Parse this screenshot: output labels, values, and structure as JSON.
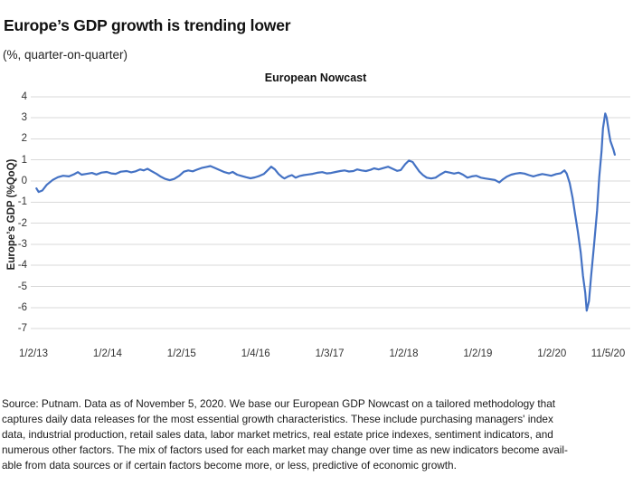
{
  "header": {
    "title": "Europe’s GDP growth is trending lower",
    "subtitle": "(%, quarter-on-quarter)"
  },
  "chart_data": {
    "type": "line",
    "title": "European Nowcast",
    "xlabel": "",
    "ylabel": "Europe’s GDP (%QoQ)",
    "ylim": [
      -7,
      4
    ],
    "grid": "horizontal-only",
    "legend": "none",
    "line_color": "#4472c4",
    "gridline_color": "#d9d9d9",
    "yticks": [
      4,
      3,
      2,
      1,
      0,
      -1,
      -2,
      -3,
      -4,
      -5,
      -6,
      -7
    ],
    "xticks": [
      {
        "label": "1/2/13",
        "t": 2013.0
      },
      {
        "label": "1/2/14",
        "t": 2014.0
      },
      {
        "label": "1/2/15",
        "t": 2015.0
      },
      {
        "label": "1/4/16",
        "t": 2016.0
      },
      {
        "label": "1/3/17",
        "t": 2017.0
      },
      {
        "label": "1/2/18",
        "t": 2018.0
      },
      {
        "label": "1/2/19",
        "t": 2019.0
      },
      {
        "label": "1/2/20",
        "t": 2020.0
      },
      {
        "label": "11/5/20",
        "t": 2020.76
      }
    ],
    "series": [
      {
        "name": "European Nowcast",
        "points": [
          [
            2013.04,
            -0.35
          ],
          [
            2013.07,
            -0.52
          ],
          [
            2013.12,
            -0.45
          ],
          [
            2013.18,
            -0.18
          ],
          [
            2013.26,
            0.05
          ],
          [
            2013.33,
            0.18
          ],
          [
            2013.4,
            0.25
          ],
          [
            2013.48,
            0.22
          ],
          [
            2013.55,
            0.32
          ],
          [
            2013.6,
            0.42
          ],
          [
            2013.65,
            0.3
          ],
          [
            2013.72,
            0.34
          ],
          [
            2013.79,
            0.38
          ],
          [
            2013.85,
            0.31
          ],
          [
            2013.92,
            0.4
          ],
          [
            2013.99,
            0.43
          ],
          [
            2014.05,
            0.36
          ],
          [
            2014.11,
            0.34
          ],
          [
            2014.18,
            0.44
          ],
          [
            2014.26,
            0.47
          ],
          [
            2014.32,
            0.41
          ],
          [
            2014.38,
            0.46
          ],
          [
            2014.44,
            0.55
          ],
          [
            2014.49,
            0.5
          ],
          [
            2014.54,
            0.58
          ],
          [
            2014.6,
            0.46
          ],
          [
            2014.66,
            0.34
          ],
          [
            2014.72,
            0.2
          ],
          [
            2014.78,
            0.1
          ],
          [
            2014.84,
            0.04
          ],
          [
            2014.9,
            0.1
          ],
          [
            2014.97,
            0.25
          ],
          [
            2015.03,
            0.44
          ],
          [
            2015.09,
            0.5
          ],
          [
            2015.15,
            0.46
          ],
          [
            2015.21,
            0.54
          ],
          [
            2015.27,
            0.62
          ],
          [
            2015.33,
            0.66
          ],
          [
            2015.39,
            0.71
          ],
          [
            2015.45,
            0.62
          ],
          [
            2015.52,
            0.51
          ],
          [
            2015.58,
            0.42
          ],
          [
            2015.64,
            0.36
          ],
          [
            2015.69,
            0.43
          ],
          [
            2015.75,
            0.3
          ],
          [
            2015.81,
            0.24
          ],
          [
            2015.87,
            0.18
          ],
          [
            2015.93,
            0.13
          ],
          [
            2015.99,
            0.17
          ],
          [
            2016.05,
            0.24
          ],
          [
            2016.11,
            0.33
          ],
          [
            2016.16,
            0.5
          ],
          [
            2016.21,
            0.68
          ],
          [
            2016.26,
            0.55
          ],
          [
            2016.31,
            0.33
          ],
          [
            2016.36,
            0.18
          ],
          [
            2016.39,
            0.12
          ],
          [
            2016.44,
            0.22
          ],
          [
            2016.49,
            0.28
          ],
          [
            2016.54,
            0.16
          ],
          [
            2016.59,
            0.23
          ],
          [
            2016.65,
            0.28
          ],
          [
            2016.71,
            0.31
          ],
          [
            2016.77,
            0.34
          ],
          [
            2016.83,
            0.39
          ],
          [
            2016.9,
            0.42
          ],
          [
            2016.96,
            0.36
          ],
          [
            2017.02,
            0.38
          ],
          [
            2017.08,
            0.43
          ],
          [
            2017.14,
            0.47
          ],
          [
            2017.2,
            0.5
          ],
          [
            2017.26,
            0.45
          ],
          [
            2017.32,
            0.47
          ],
          [
            2017.37,
            0.55
          ],
          [
            2017.43,
            0.5
          ],
          [
            2017.49,
            0.47
          ],
          [
            2017.55,
            0.53
          ],
          [
            2017.6,
            0.6
          ],
          [
            2017.66,
            0.55
          ],
          [
            2017.73,
            0.62
          ],
          [
            2017.79,
            0.68
          ],
          [
            2017.85,
            0.58
          ],
          [
            2017.91,
            0.48
          ],
          [
            2017.96,
            0.52
          ],
          [
            2018.02,
            0.8
          ],
          [
            2018.07,
            0.97
          ],
          [
            2018.12,
            0.9
          ],
          [
            2018.17,
            0.65
          ],
          [
            2018.21,
            0.45
          ],
          [
            2018.26,
            0.28
          ],
          [
            2018.31,
            0.16
          ],
          [
            2018.37,
            0.12
          ],
          [
            2018.43,
            0.16
          ],
          [
            2018.49,
            0.3
          ],
          [
            2018.56,
            0.44
          ],
          [
            2018.62,
            0.4
          ],
          [
            2018.68,
            0.35
          ],
          [
            2018.74,
            0.4
          ],
          [
            2018.8,
            0.3
          ],
          [
            2018.86,
            0.16
          ],
          [
            2018.92,
            0.22
          ],
          [
            2018.98,
            0.25
          ],
          [
            2019.04,
            0.16
          ],
          [
            2019.1,
            0.12
          ],
          [
            2019.17,
            0.08
          ],
          [
            2019.23,
            0.05
          ],
          [
            2019.29,
            -0.07
          ],
          [
            2019.34,
            0.08
          ],
          [
            2019.39,
            0.2
          ],
          [
            2019.45,
            0.3
          ],
          [
            2019.51,
            0.35
          ],
          [
            2019.57,
            0.38
          ],
          [
            2019.63,
            0.35
          ],
          [
            2019.69,
            0.28
          ],
          [
            2019.75,
            0.22
          ],
          [
            2019.81,
            0.28
          ],
          [
            2019.87,
            0.33
          ],
          [
            2019.93,
            0.29
          ],
          [
            2019.99,
            0.25
          ],
          [
            2020.06,
            0.33
          ],
          [
            2020.12,
            0.37
          ],
          [
            2020.17,
            0.5
          ],
          [
            2020.2,
            0.35
          ],
          [
            2020.24,
            -0.1
          ],
          [
            2020.28,
            -0.8
          ],
          [
            2020.31,
            -1.5
          ],
          [
            2020.35,
            -2.4
          ],
          [
            2020.39,
            -3.4
          ],
          [
            2020.42,
            -4.5
          ],
          [
            2020.45,
            -5.3
          ],
          [
            2020.47,
            -6.15
          ],
          [
            2020.5,
            -5.7
          ],
          [
            2020.53,
            -4.5
          ],
          [
            2020.57,
            -3.0
          ],
          [
            2020.61,
            -1.4
          ],
          [
            2020.64,
            0.2
          ],
          [
            2020.67,
            1.4
          ],
          [
            2020.69,
            2.5
          ],
          [
            2020.72,
            3.2
          ],
          [
            2020.74,
            3.0
          ],
          [
            2020.77,
            2.3
          ],
          [
            2020.79,
            1.9
          ],
          [
            2020.83,
            1.5
          ],
          [
            2020.85,
            1.25
          ]
        ]
      }
    ]
  },
  "footer": {
    "source_lines": [
      "Source: Putnam. Data as of November 5, 2020. We base our European GDP Nowcast on a tailored methodology that",
      "captures daily data releases for the most essential growth characteristics. These include purchasing managers' index",
      "data, industrial production, retail sales data, labor market metrics, real estate price indexes, sentiment indicators, and",
      "numerous other factors. The mix of factors used for each market may change over time as new indicators become avail-",
      "able from data sources or if certain factors become more, or less, predictive of economic growth."
    ]
  }
}
